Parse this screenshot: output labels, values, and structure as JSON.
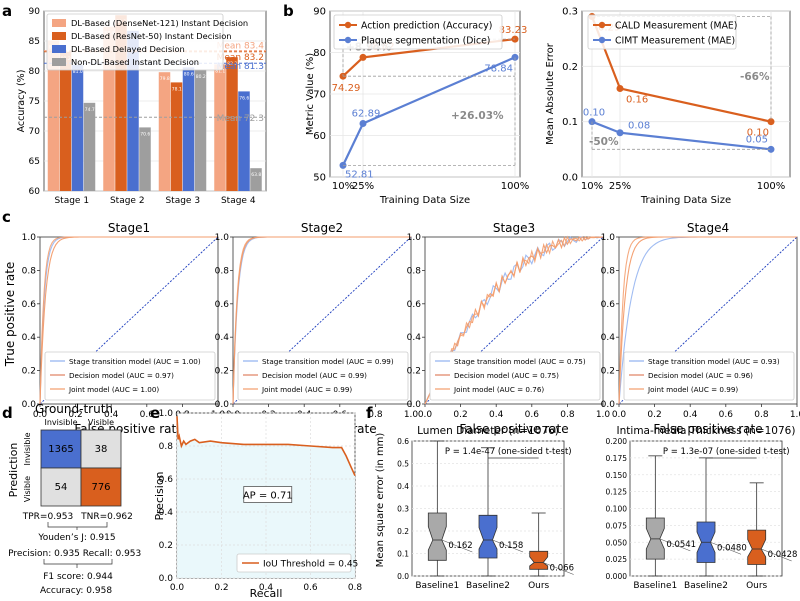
{
  "panel_letters": [
    "a",
    "b",
    "c",
    "d",
    "e",
    "f"
  ],
  "colors": {
    "dense": "#f4a582",
    "resnet": "#d95f1e",
    "delayed": "#4a6fcf",
    "nondl": "#9e9e9e",
    "orange": "#d95f1e",
    "blue": "#5b7fd3",
    "roc_blue": "#1f3fbf",
    "light_orange": "#f39c6b",
    "light_blue": "#8fb0f0",
    "pr_fill": "#eaf8fb"
  },
  "chart_data": [
    {
      "id": "a",
      "type": "bar",
      "title": "",
      "ylabel": "Accuracy (%)",
      "xlabel": "",
      "ylim": [
        60,
        90
      ],
      "yticks": [
        60,
        65,
        70,
        75,
        80,
        85,
        90
      ],
      "categories": [
        "Stage 1",
        "Stage 2",
        "Stage 3",
        "Stage 4"
      ],
      "legend_position": "top-left",
      "series": [
        {
          "name": "DL-Based (DenseNet-121) Instant Decision",
          "values": [
            85.1,
            87.4,
            79.8,
            81.1
          ],
          "labels": [
            "85.1",
            "87.4",
            "79.8",
            "81.1"
          ]
        },
        {
          "name": "DL-Based (ResNet-50) Instant Decision",
          "values": [
            83.2,
            89.3,
            78.1,
            82.3
          ],
          "labels": [
            "83.2",
            "89.3",
            "78.1",
            "82.3"
          ]
        },
        {
          "name": "DL-Based Delayed Decision",
          "values": [
            81.0,
            86.7,
            80.6,
            76.6
          ],
          "labels": [
            "81.0",
            "86.7",
            "80.6",
            "76.6"
          ]
        },
        {
          "name": "Non-DL-Based Instant Decision",
          "values": [
            74.7,
            70.6,
            80.2,
            63.8
          ],
          "labels": [
            "74.7",
            "70.6",
            "80.2",
            "63.8"
          ]
        }
      ],
      "means": [
        {
          "label": "Mean 83.4",
          "value": 83.4
        },
        {
          "label": "Mean 83.2",
          "value": 83.2
        },
        {
          "label": "Mean 81.3",
          "value": 81.3
        },
        {
          "label": "Mean 72.3",
          "value": 72.3
        }
      ]
    },
    {
      "id": "b1",
      "type": "line",
      "title": "",
      "xlabel": "Training Data Size",
      "ylabel": "Metric Value (%)",
      "ylim": [
        50,
        90
      ],
      "yticks": [
        50,
        60,
        70,
        80,
        90
      ],
      "x": [
        10,
        25,
        100
      ],
      "xticklabels": [
        "10%",
        "25%",
        "100%"
      ],
      "legend_position": "top-left",
      "series": [
        {
          "name": "Action prediction (Accuracy)",
          "values": [
            74.29,
            78.82,
            83.23
          ],
          "labels": [
            "74.29",
            "78.82",
            "83.23"
          ]
        },
        {
          "name": "Plaque segmentation (Dice)",
          "values": [
            52.81,
            62.89,
            78.84
          ],
          "labels": [
            "52.81",
            "62.89",
            "78.84"
          ]
        }
      ],
      "annotations": [
        "+8.94%",
        "+26.03%"
      ]
    },
    {
      "id": "b2",
      "type": "line",
      "title": "",
      "xlabel": "Training Data Size",
      "ylabel": "Mean Absolute Error",
      "ylim": [
        0.0,
        0.3
      ],
      "yticks": [
        0.0,
        0.1,
        0.2,
        0.3
      ],
      "yticklabels": [
        "0.0",
        "0.1",
        "0.2",
        "0.3"
      ],
      "x": [
        10,
        25,
        100
      ],
      "xticklabels": [
        "10%",
        "25%",
        "100%"
      ],
      "legend_position": "top-right",
      "series": [
        {
          "name": "CALD Measurement (MAE)",
          "values": [
            0.29,
            0.16,
            0.1
          ],
          "labels": [
            "0.29",
            "0.16",
            "0.10"
          ]
        },
        {
          "name": "CIMT Measurement (MAE)",
          "values": [
            0.1,
            0.08,
            0.05
          ],
          "labels": [
            "0.10",
            "0.08",
            "0.05"
          ]
        }
      ],
      "annotations": [
        "-66%",
        "-50%"
      ]
    },
    {
      "id": "c",
      "type": "line",
      "xlabel": "False positive rate",
      "ylabel": "True positive rate",
      "xticks": [
        "0.0",
        "0.2",
        "0.4",
        "0.6",
        "0.8",
        "1.0"
      ],
      "yticks": [
        "0.0",
        "0.2",
        "0.4",
        "0.6",
        "0.8",
        "1.0"
      ],
      "legend_position": "bottom-right",
      "panels": [
        {
          "title": "Stage1",
          "legend": [
            "Stage transition model (AUC = 1.00)",
            "Decision model (AUC = 0.97)",
            "Joint model (AUC = 1.00)"
          ],
          "auc": [
            1.0,
            0.97,
            1.0
          ]
        },
        {
          "title": "Stage2",
          "legend": [
            "Stage transition model (AUC = 0.99)",
            "Decision model (AUC = 0.99)",
            "Joint model (AUC = 0.99)"
          ],
          "auc": [
            0.99,
            0.99,
            0.99
          ]
        },
        {
          "title": "Stage3",
          "legend": [
            "Stage transition model (AUC = 0.75)",
            "Decision model (AUC = 0.75)",
            "Joint model (AUC = 0.76)"
          ],
          "auc": [
            0.75,
            0.75,
            0.76
          ]
        },
        {
          "title": "Stage4",
          "legend": [
            "Stage transition model (AUC = 0.93)",
            "Decision model (AUC = 0.96)",
            "Joint model (AUC = 0.99)"
          ],
          "auc": [
            0.93,
            0.96,
            0.99
          ]
        }
      ]
    },
    {
      "id": "d",
      "type": "table",
      "title": "Ground-truth",
      "col_labels": [
        "Invisible",
        "Visible"
      ],
      "row_title": "Prediction",
      "row_labels": [
        "Invisible",
        "Visible"
      ],
      "cells": [
        [
          1365,
          38
        ],
        [
          54,
          776
        ]
      ],
      "metrics": [
        "TPR=0.953",
        "TNR=0.962",
        "Youden’s J: 0.915",
        "Precision: 0.935",
        "Recall: 0.953",
        "F1 score: 0.944",
        "Accuracy: 0.958"
      ]
    },
    {
      "id": "e",
      "type": "area",
      "xlabel": "Recall",
      "ylabel": "Precision",
      "xlim": [
        0.0,
        0.8
      ],
      "ylim": [
        0.0,
        1.0
      ],
      "xticks": [
        "0.0",
        "0.2",
        "0.4",
        "0.6",
        "0.8"
      ],
      "yticks": [
        "0.0",
        "0.2",
        "0.4",
        "0.6",
        "0.8",
        "1.0"
      ],
      "x": [
        0.0,
        0.005,
        0.01,
        0.02,
        0.03,
        0.04,
        0.06,
        0.08,
        0.1,
        0.15,
        0.2,
        0.3,
        0.4,
        0.5,
        0.6,
        0.7,
        0.74,
        0.76,
        0.78,
        0.8
      ],
      "y": [
        0.98,
        0.84,
        0.86,
        0.8,
        0.83,
        0.81,
        0.83,
        0.84,
        0.82,
        0.83,
        0.82,
        0.81,
        0.81,
        0.81,
        0.8,
        0.79,
        0.79,
        0.74,
        0.68,
        0.62
      ],
      "annotation": "AP = 0.71",
      "legend": [
        "IoU Threshold = 0.45"
      ],
      "legend_position": "bottom-right"
    },
    {
      "id": "f1",
      "type": "box",
      "title": "Lumen Diameter (n=1076)",
      "ylabel": "Mean square error (in mm)",
      "ylim": [
        0.0,
        0.6
      ],
      "yticks": [
        "0.0",
        "0.1",
        "0.2",
        "0.3",
        "0.4",
        "0.5",
        "0.6"
      ],
      "categories": [
        "Baseline1",
        "Baseline2",
        "Ours"
      ],
      "boxes": [
        {
          "whisker_low": 0.0,
          "q1": 0.07,
          "median": 0.16,
          "q3": 0.28,
          "whisker_high": 0.6
        },
        {
          "whisker_low": 0.0,
          "q1": 0.08,
          "median": 0.16,
          "q3": 0.27,
          "whisker_high": 0.57
        },
        {
          "whisker_low": 0.0,
          "q1": 0.03,
          "median": 0.06,
          "q3": 0.11,
          "whisker_high": 0.28
        }
      ],
      "mean_labels": [
        "0.162",
        "0.158",
        "0.066"
      ],
      "pvalue": "P = 1.4e-47 (one-sided t-test)"
    },
    {
      "id": "f2",
      "type": "box",
      "title": "Intima-media Thickness (n=1076)",
      "ylabel": "",
      "ylim": [
        0.0,
        0.2
      ],
      "yticks": [
        "0.000",
        "0.025",
        "0.050",
        "0.075",
        "0.100",
        "0.125",
        "0.150",
        "0.175",
        "0.200"
      ],
      "categories": [
        "Baseline1",
        "Baseline2",
        "Ours"
      ],
      "boxes": [
        {
          "whisker_low": 0.0,
          "q1": 0.025,
          "median": 0.055,
          "q3": 0.086,
          "whisker_high": 0.178
        },
        {
          "whisker_low": 0.0,
          "q1": 0.02,
          "median": 0.05,
          "q3": 0.08,
          "whisker_high": 0.175
        },
        {
          "whisker_low": 0.0,
          "q1": 0.017,
          "median": 0.04,
          "q3": 0.068,
          "whisker_high": 0.138
        }
      ],
      "mean_labels": [
        "0.0541",
        "0.0480",
        "0.0428"
      ],
      "pvalue": "P = 1.3e-07 (one-sided t-test)"
    }
  ]
}
